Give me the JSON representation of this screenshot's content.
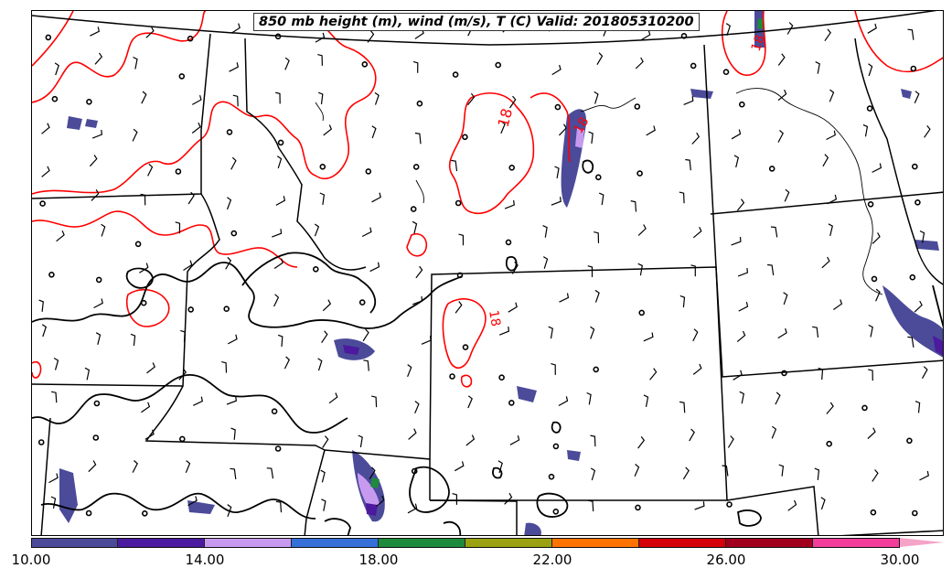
{
  "title": "850 mb height (m), wind (m/s), T (C) Valid: 201805310200",
  "colorbar": {
    "colors": [
      "#4b4b9a",
      "#4c1a9e",
      "#c79af0",
      "#3570d8",
      "#1e8a3c",
      "#9aa211",
      "#ff7300",
      "#d4000a",
      "#a0001d",
      "#f23d9a"
    ],
    "extend_color": "#f5a3c7",
    "tick_labels": [
      "10.00",
      "14.00",
      "18.00",
      "22.00",
      "26.00",
      "30.00"
    ],
    "min": 10,
    "max": 30
  },
  "contour_labels": [
    {
      "text": "18",
      "color": "#ff0000"
    },
    {
      "text": "18",
      "color": "#ff0000"
    },
    {
      "text": "18",
      "color": "#ff0000"
    },
    {
      "text": "18",
      "color": "#ff0000"
    }
  ],
  "colors": {
    "temperature_contour": "#ff0000",
    "height_contour": "#000000",
    "state_border": "#000000",
    "wind_barb": "#000000"
  }
}
